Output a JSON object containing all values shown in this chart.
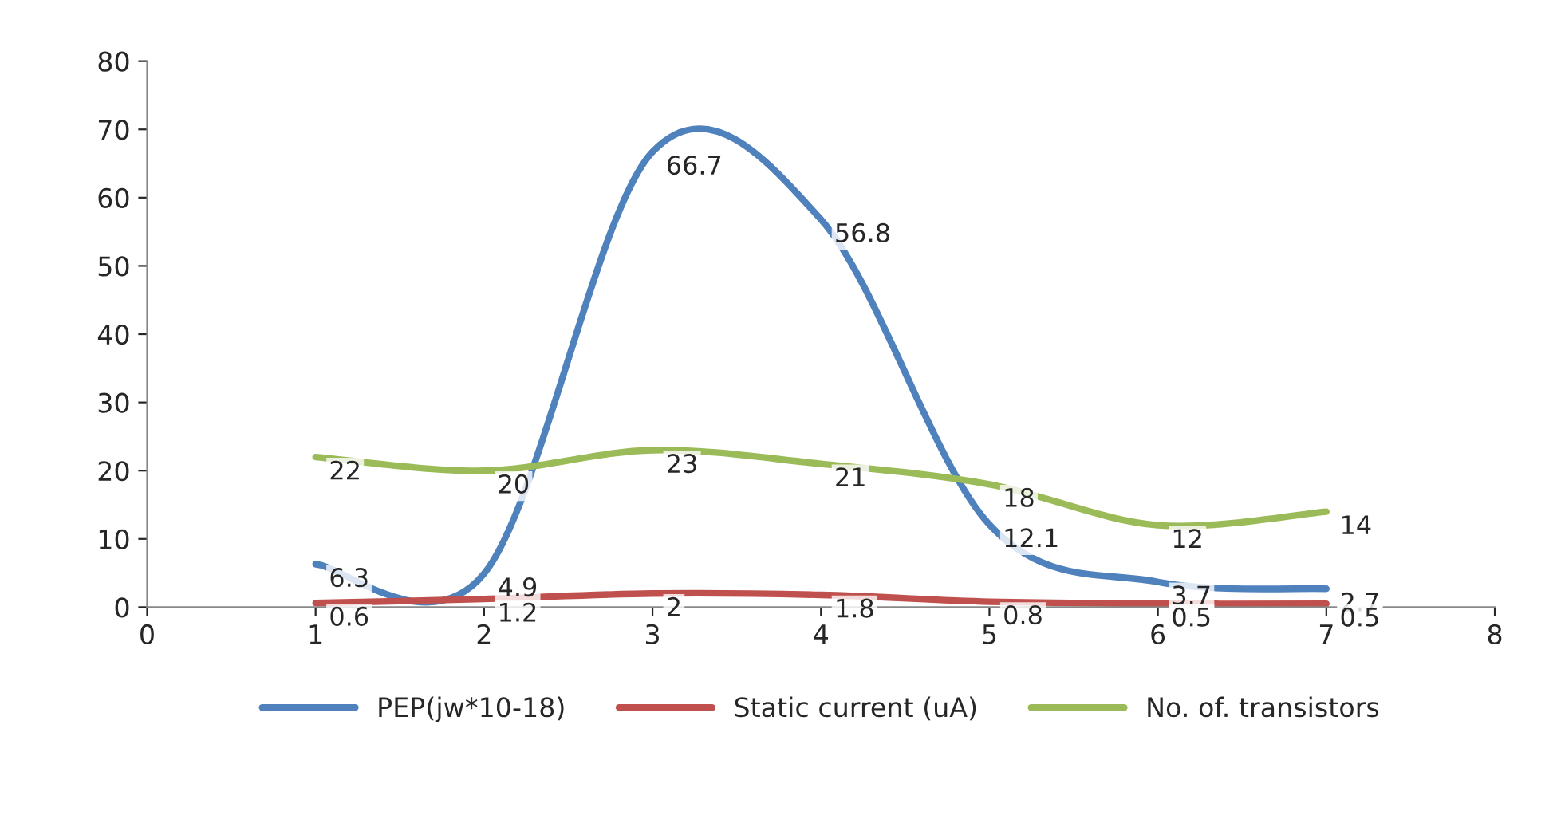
{
  "chart_data": {
    "type": "line",
    "x": [
      1,
      2,
      3,
      4,
      5,
      6,
      7
    ],
    "series": [
      {
        "name": "PEP(jw*10-18)",
        "color": "#4f81bd",
        "values": [
          6.3,
          4.9,
          66.7,
          56.8,
          12.1,
          3.7,
          2.7
        ]
      },
      {
        "name": "Static current (uA)",
        "color": "#c0504d",
        "values": [
          0.6,
          1.2,
          2,
          1.8,
          0.8,
          0.5,
          0.5
        ]
      },
      {
        "name": "No. of. transistors",
        "color": "#9bbb59",
        "values": [
          22,
          20,
          23,
          21,
          18,
          12,
          14
        ]
      }
    ],
    "xlim": [
      0,
      8
    ],
    "xticks": [
      0,
      1,
      2,
      3,
      4,
      5,
      6,
      7,
      8
    ],
    "ylim": [
      0,
      80
    ],
    "yticks": [
      0,
      10,
      20,
      30,
      40,
      50,
      60,
      70,
      80
    ],
    "data_labels": true,
    "legend": "bottom",
    "grid": false,
    "marker": "none",
    "line_style": "solid"
  }
}
